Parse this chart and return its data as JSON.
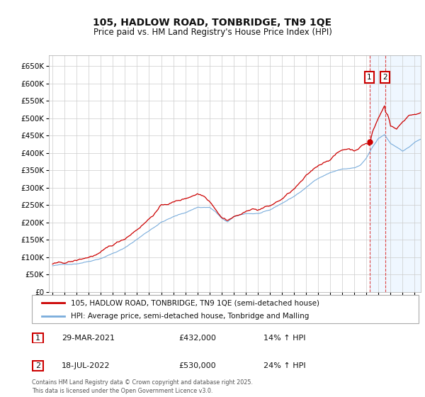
{
  "title": "105, HADLOW ROAD, TONBRIDGE, TN9 1QE",
  "subtitle": "Price paid vs. HM Land Registry's House Price Index (HPI)",
  "footer": "Contains HM Land Registry data © Crown copyright and database right 2025.\nThis data is licensed under the Open Government Licence v3.0.",
  "legend_line1": "105, HADLOW ROAD, TONBRIDGE, TN9 1QE (semi-detached house)",
  "legend_line2": "HPI: Average price, semi-detached house, Tonbridge and Malling",
  "marker1_label": "29-MAR-2021",
  "marker1_price": "£432,000",
  "marker1_hpi": "14% ↑ HPI",
  "marker2_label": "18-JUL-2022",
  "marker2_price": "£530,000",
  "marker2_hpi": "24% ↑ HPI",
  "property_color": "#cc0000",
  "hpi_color": "#7aaddc",
  "background_color": "#ffffff",
  "grid_color": "#cccccc",
  "marker1_x": 2021.25,
  "marker2_x": 2022.55,
  "ylim": [
    0,
    680000
  ],
  "yticks": [
    0,
    50000,
    100000,
    150000,
    200000,
    250000,
    300000,
    350000,
    400000,
    450000,
    500000,
    550000,
    600000,
    650000
  ],
  "xlim_start": 1994.7,
  "xlim_end": 2025.5
}
